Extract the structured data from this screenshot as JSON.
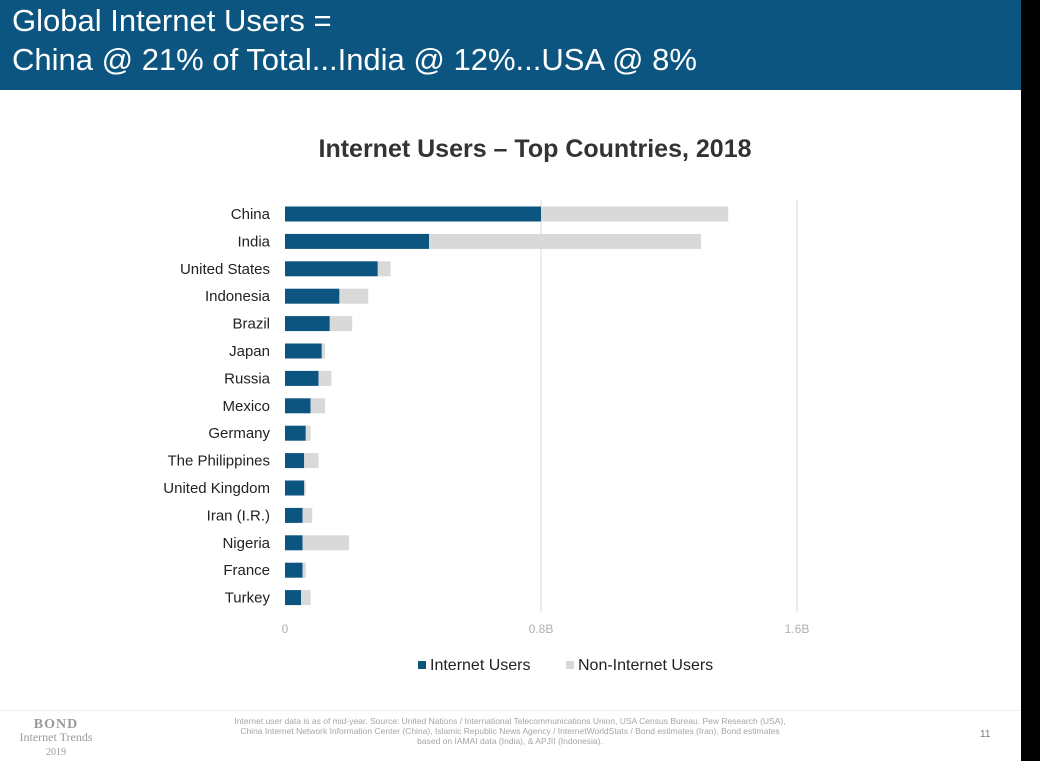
{
  "slide": {
    "title_line_1": "Global Internet Users =",
    "title_line_2": "China @ 21% of Total...India @ 12%...USA @ 8%",
    "logo": {
      "line1": "BOND",
      "line2": "Internet Trends",
      "line3": "2019"
    },
    "source_note": "Internet user data is as of mid-year.  Source: United Nations / International Telecommunications Union, USA Census Bureau. Pew Research (USA), China Internet Network Information Center (China), Islamic Republic News Agency / InternetWorldStats / Bond estimates (Iran), Bond estimates based on IAMAI data (India), & APJII (Indonesia).",
    "page_number": "11"
  },
  "colors": {
    "header_bg": "#0b5580",
    "internet_users": "#0b5580",
    "non_internet_users": "#d9d9d9"
  },
  "chart_data": {
    "type": "bar",
    "orientation": "horizontal",
    "stacked": true,
    "title": "Internet Users – Top Countries, 2018",
    "categories": [
      "China",
      "India",
      "United States",
      "Indonesia",
      "Brazil",
      "Japan",
      "Russia",
      "Mexico",
      "Germany",
      "The Philippines",
      "United Kingdom",
      "Iran (I.R.)",
      "Nigeria",
      "France",
      "Turkey"
    ],
    "series": [
      {
        "name": "Internet Users",
        "values": [
          0.8,
          0.45,
          0.29,
          0.17,
          0.14,
          0.115,
          0.105,
          0.08,
          0.065,
          0.06,
          0.06,
          0.055,
          0.055,
          0.055,
          0.05
        ]
      },
      {
        "name": "Non-Internet Users",
        "values": [
          0.585,
          0.85,
          0.04,
          0.09,
          0.07,
          0.01,
          0.04,
          0.045,
          0.015,
          0.045,
          0.005,
          0.03,
          0.145,
          0.01,
          0.03
        ]
      }
    ],
    "x_ticks": [
      0,
      0.8,
      1.6
    ],
    "x_tick_labels": [
      "0",
      "0.8B",
      "1.6B"
    ],
    "xlim": [
      0,
      1.6
    ],
    "grid": "vertical",
    "legend": "bottom-center"
  }
}
